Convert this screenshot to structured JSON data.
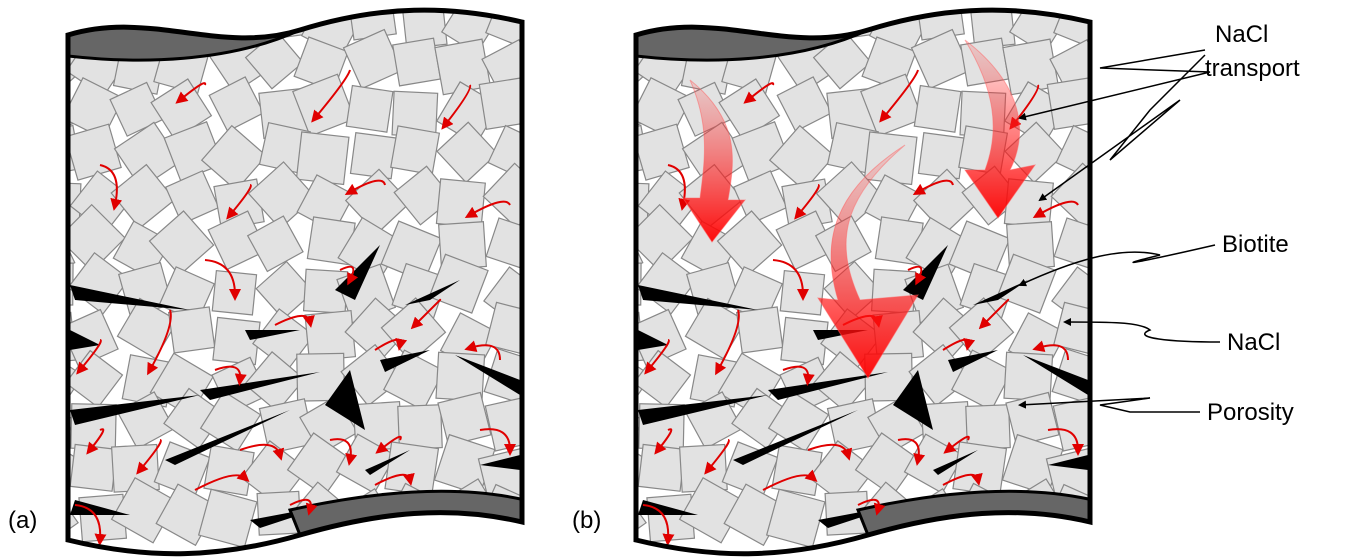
{
  "panels": [
    {
      "label": "(a)"
    },
    {
      "label": "(b)"
    }
  ],
  "annotations": [
    {
      "lines": [
        "NaCl",
        "transport"
      ]
    },
    {
      "lines": [
        "Biotite"
      ]
    },
    {
      "lines": [
        "NaCl"
      ]
    },
    {
      "lines": [
        "Porosity"
      ]
    }
  ]
}
